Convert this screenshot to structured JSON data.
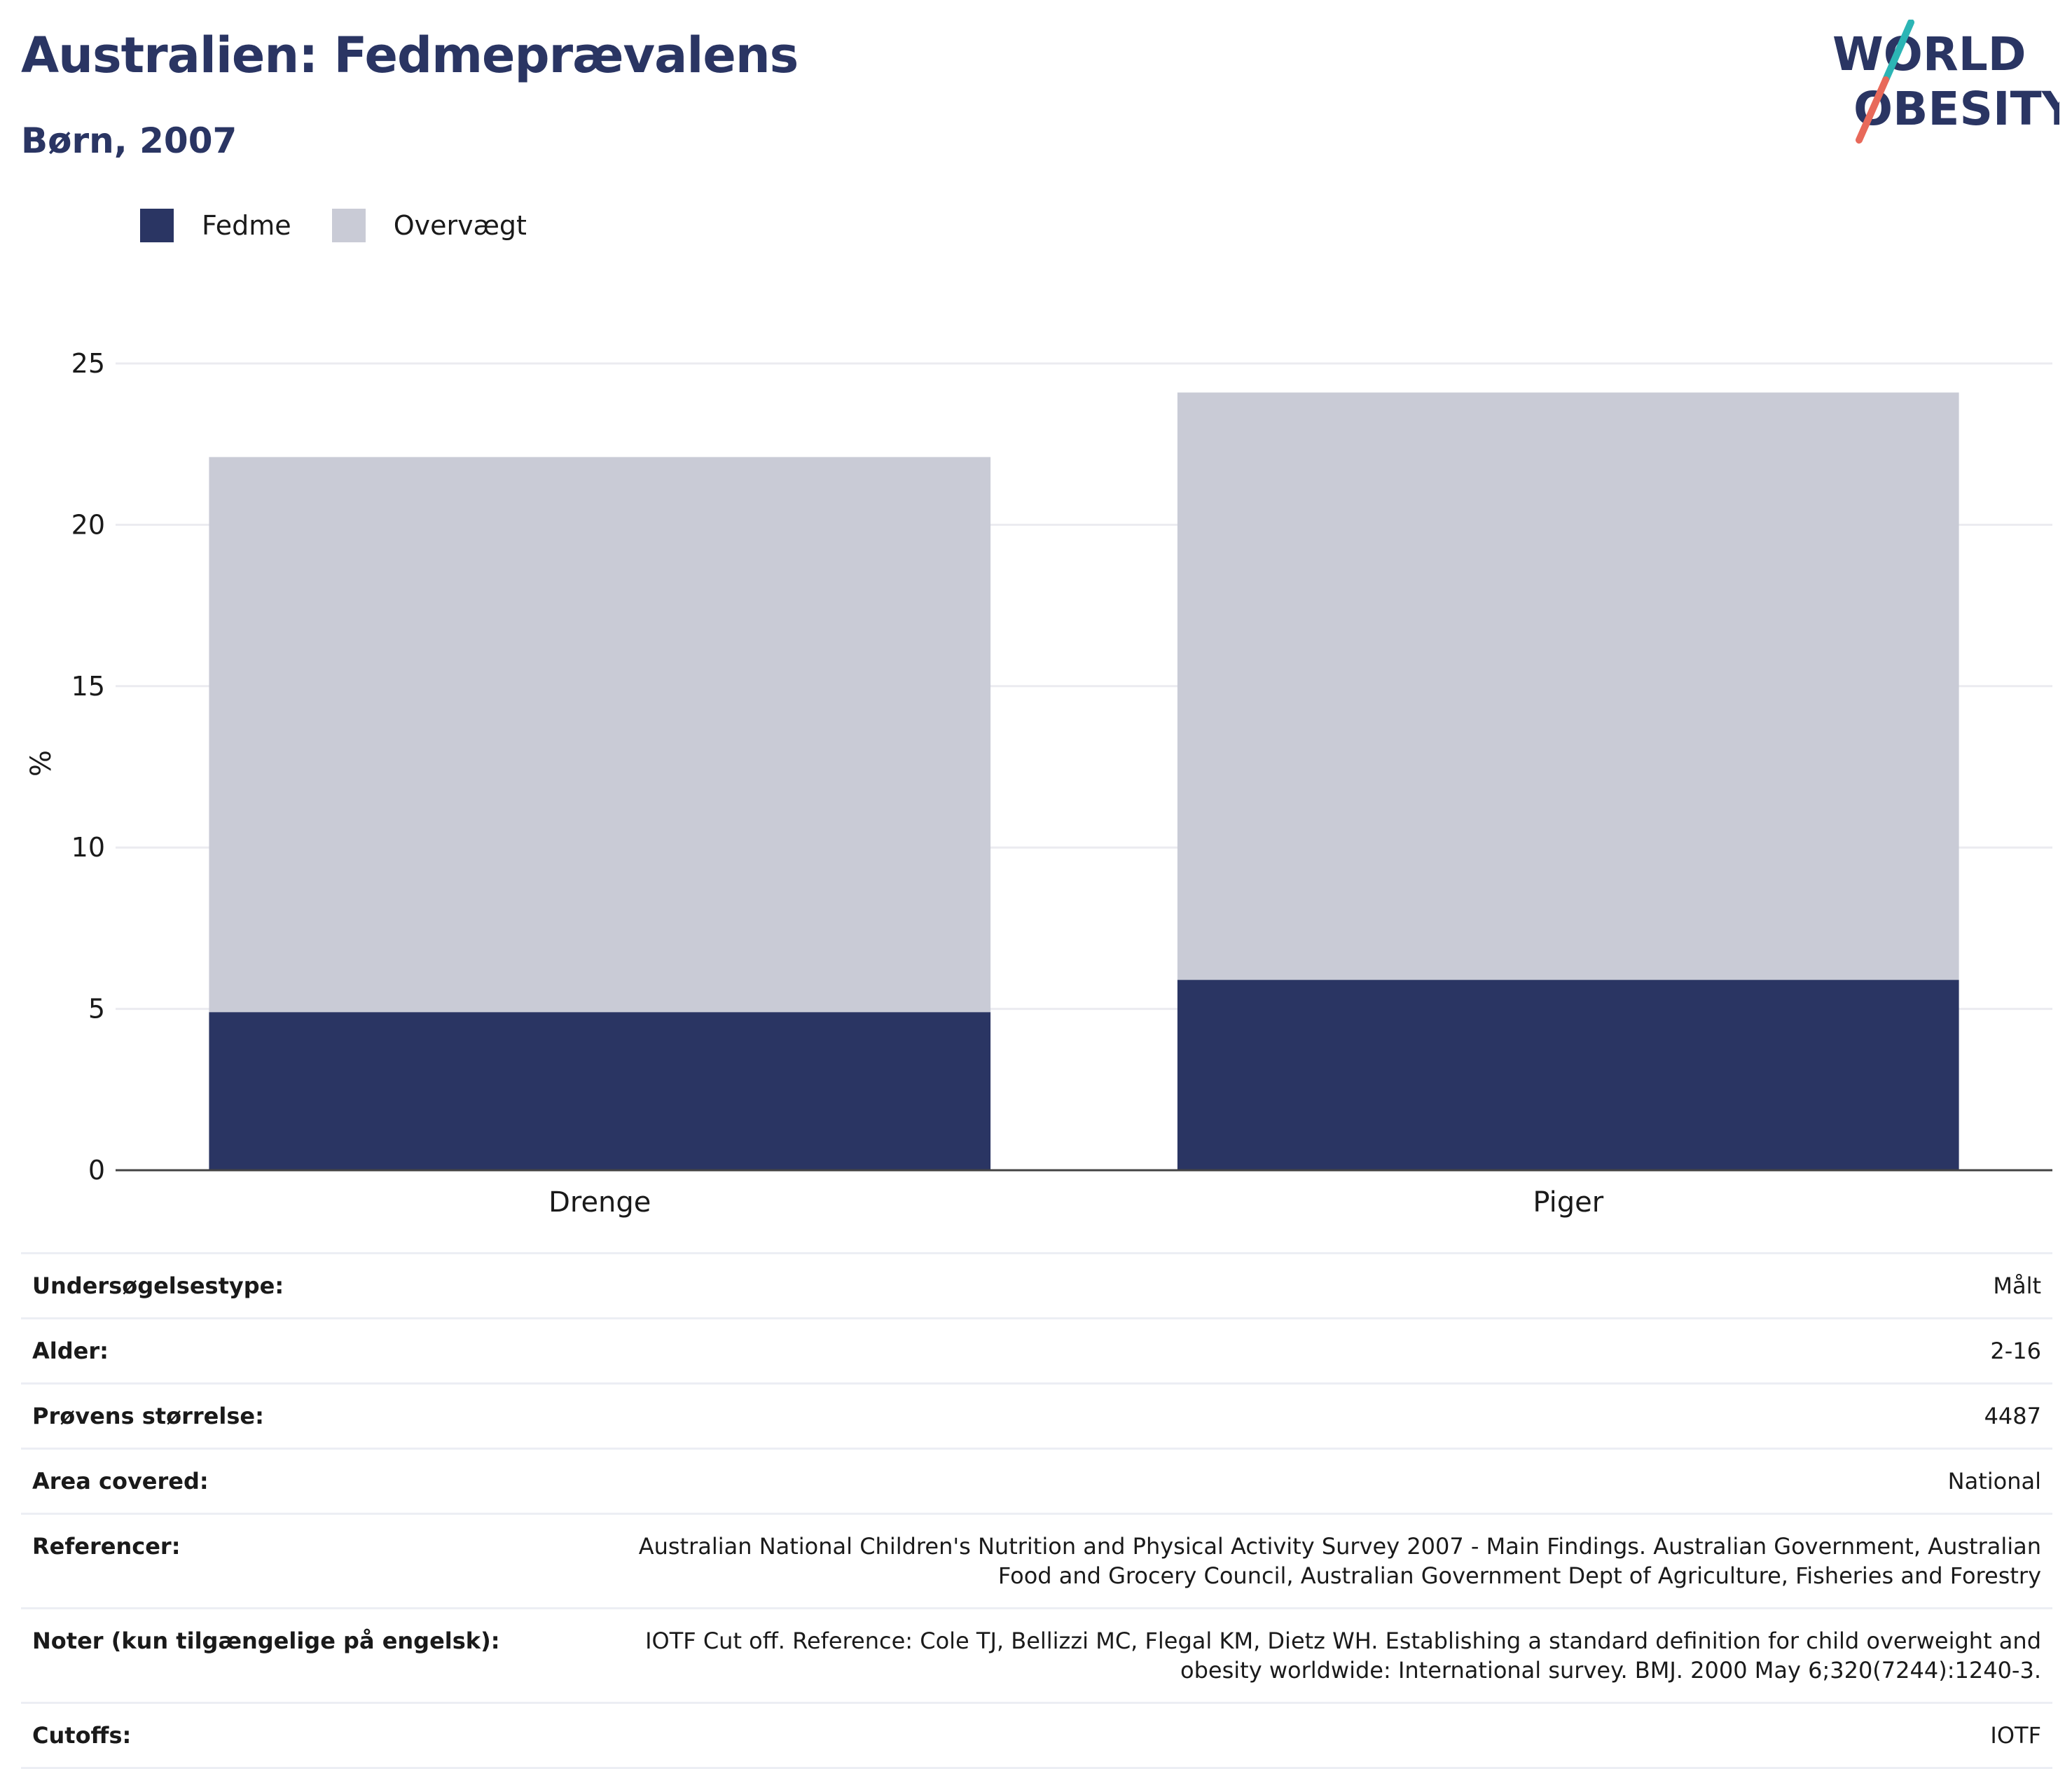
{
  "title": "Australien: Fedmeprævalens",
  "subtitle": "Børn, 2007",
  "logo": {
    "line1": "WORLD",
    "line2": "OBESITY"
  },
  "colors": {
    "obesity": "#2a3563",
    "overweight": "#c9cbd6",
    "title": "#2a3563",
    "logo_teal": "#2cb5b5",
    "logo_coral": "#e8695a"
  },
  "chart_data": {
    "type": "bar",
    "stacked": true,
    "categories": [
      "Drenge",
      "Piger"
    ],
    "series": [
      {
        "name": "Fedme",
        "values": [
          4.9,
          5.9
        ]
      },
      {
        "name": "Overvægt",
        "values": [
          17.2,
          18.2
        ]
      }
    ],
    "totals": [
      22.1,
      24.1
    ],
    "ylabel": "%",
    "xlabel": "",
    "ylim": [
      0,
      25
    ],
    "yticks": [
      "0",
      "5",
      "10",
      "15",
      "20",
      "25"
    ],
    "grid": true,
    "legend_position": "top-left"
  },
  "info": [
    {
      "label": "Undersøgelsestype:",
      "value": "Målt"
    },
    {
      "label": "Alder:",
      "value": "2-16"
    },
    {
      "label": "Prøvens størrelse:",
      "value": "4487"
    },
    {
      "label": "Area covered:",
      "value": "National"
    },
    {
      "label": "Referencer:",
      "value": "Australian National Children's Nutrition and Physical Activity Survey 2007 - Main Findings. Australian Government, Australian Food and Grocery Council, Australian Government Dept of Agriculture, Fisheries and Forestry"
    },
    {
      "label": "Noter (kun tilgængelige på engelsk):",
      "value": "IOTF Cut off. Reference: Cole TJ, Bellizzi MC, Flegal KM, Dietz WH. Establishing a standard definition for child overweight and obesity worldwide: International survey. BMJ. 2000 May 6;320(7244):1240-3."
    },
    {
      "label": "Cutoffs:",
      "value": "IOTF"
    }
  ]
}
